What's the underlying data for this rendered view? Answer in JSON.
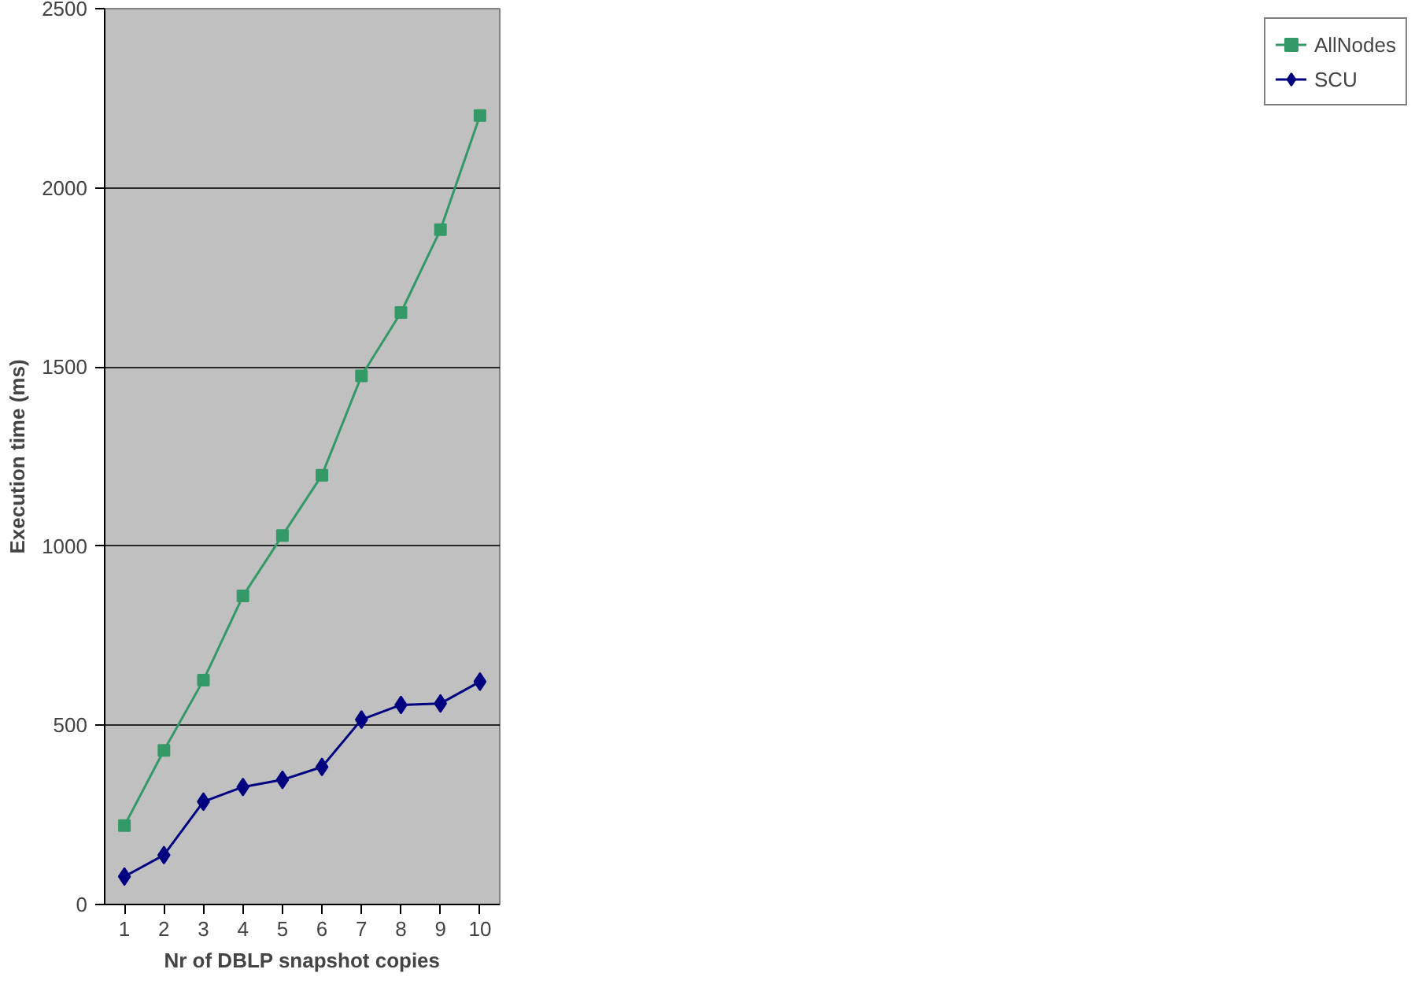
{
  "chart_data": {
    "type": "line",
    "xlabel": "Nr of DBLP snapshot copies",
    "ylabel": "Execution time (ms)",
    "categories": [
      "1",
      "2",
      "3",
      "4",
      "5",
      "6",
      "7",
      "8",
      "9",
      "10"
    ],
    "series": [
      {
        "name": "AllNodes",
        "color": "#339966",
        "marker": "square",
        "values": [
          220,
          430,
          626,
          861,
          1030,
          1198,
          1475,
          1652,
          1883,
          2202
        ]
      },
      {
        "name": "SCU",
        "color": "#000080",
        "marker": "diamond",
        "values": [
          78,
          138,
          287,
          328,
          348,
          384,
          516,
          557,
          561,
          622
        ]
      }
    ],
    "ylim": [
      0,
      2500
    ],
    "yticks": [
      0,
      500,
      1000,
      1500,
      2000,
      2500
    ],
    "grid": "y",
    "legend": "right",
    "line_style": "solid"
  }
}
